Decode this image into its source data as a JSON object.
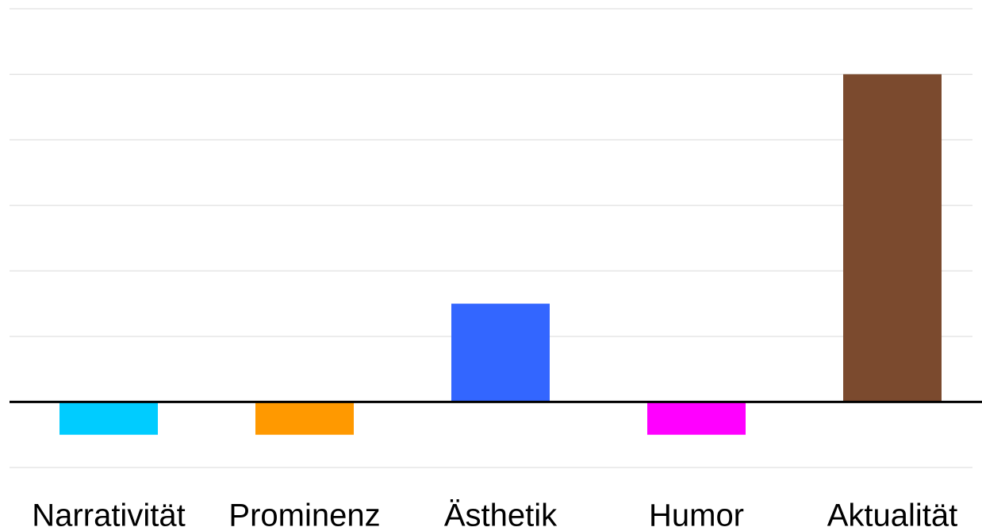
{
  "chart_data": {
    "type": "bar",
    "categories": [
      "Narrativität",
      "Prominenz",
      "Ästhetik",
      "Humor",
      "Aktualität"
    ],
    "values": [
      -0.5,
      -0.5,
      1.5,
      -0.5,
      5
    ],
    "colors": [
      "#00ccff",
      "#ff9900",
      "#3366ff",
      "#ff00ff",
      "#7b4a2e"
    ],
    "ylim": [
      -1,
      6
    ],
    "yticks": [
      -1,
      0,
      1,
      2,
      3,
      4,
      5,
      6
    ],
    "grid": true
  }
}
